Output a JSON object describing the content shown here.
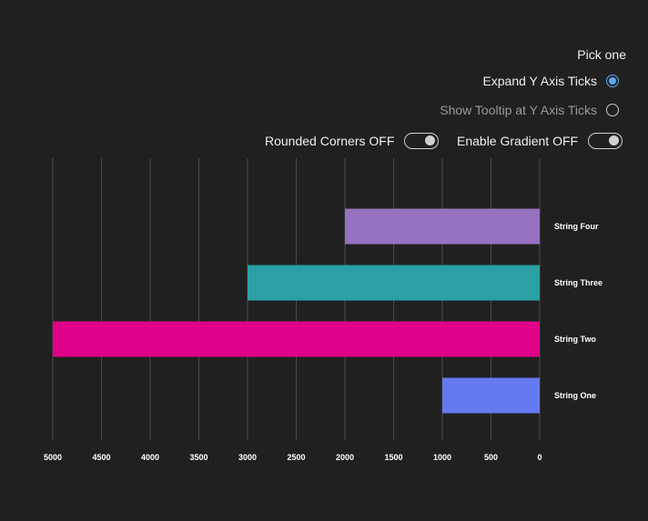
{
  "controls": {
    "pick_label": "Pick one",
    "radio_options": [
      {
        "label": "Expand Y Axis Ticks",
        "checked": true
      },
      {
        "label": "Show Tooltip at Y Axis Ticks",
        "checked": false
      }
    ],
    "toggles": [
      {
        "label": "Rounded Corners OFF",
        "on": false
      },
      {
        "label": "Enable Gradient OFF",
        "on": false
      }
    ]
  },
  "colors": {
    "background": "#202020",
    "gridline": "#4a4a4a",
    "radio_accent": "#5aa9f5"
  },
  "chart_data": {
    "type": "bar",
    "orientation": "horizontal",
    "x_reversed": true,
    "categories": [
      "String Four",
      "String Three",
      "String Two",
      "String One"
    ],
    "values": [
      2000,
      3000,
      5000,
      1000
    ],
    "bar_colors": [
      "#9672c0",
      "#2aa0a4",
      "#e0008a",
      "#667af0"
    ],
    "xlim": [
      0,
      5000
    ],
    "xticks": [
      5000,
      4500,
      4000,
      3500,
      3000,
      2500,
      2000,
      1500,
      1000,
      500,
      0
    ],
    "grid": true,
    "category_axis_side": "right",
    "title": "",
    "xlabel": "",
    "ylabel": ""
  }
}
